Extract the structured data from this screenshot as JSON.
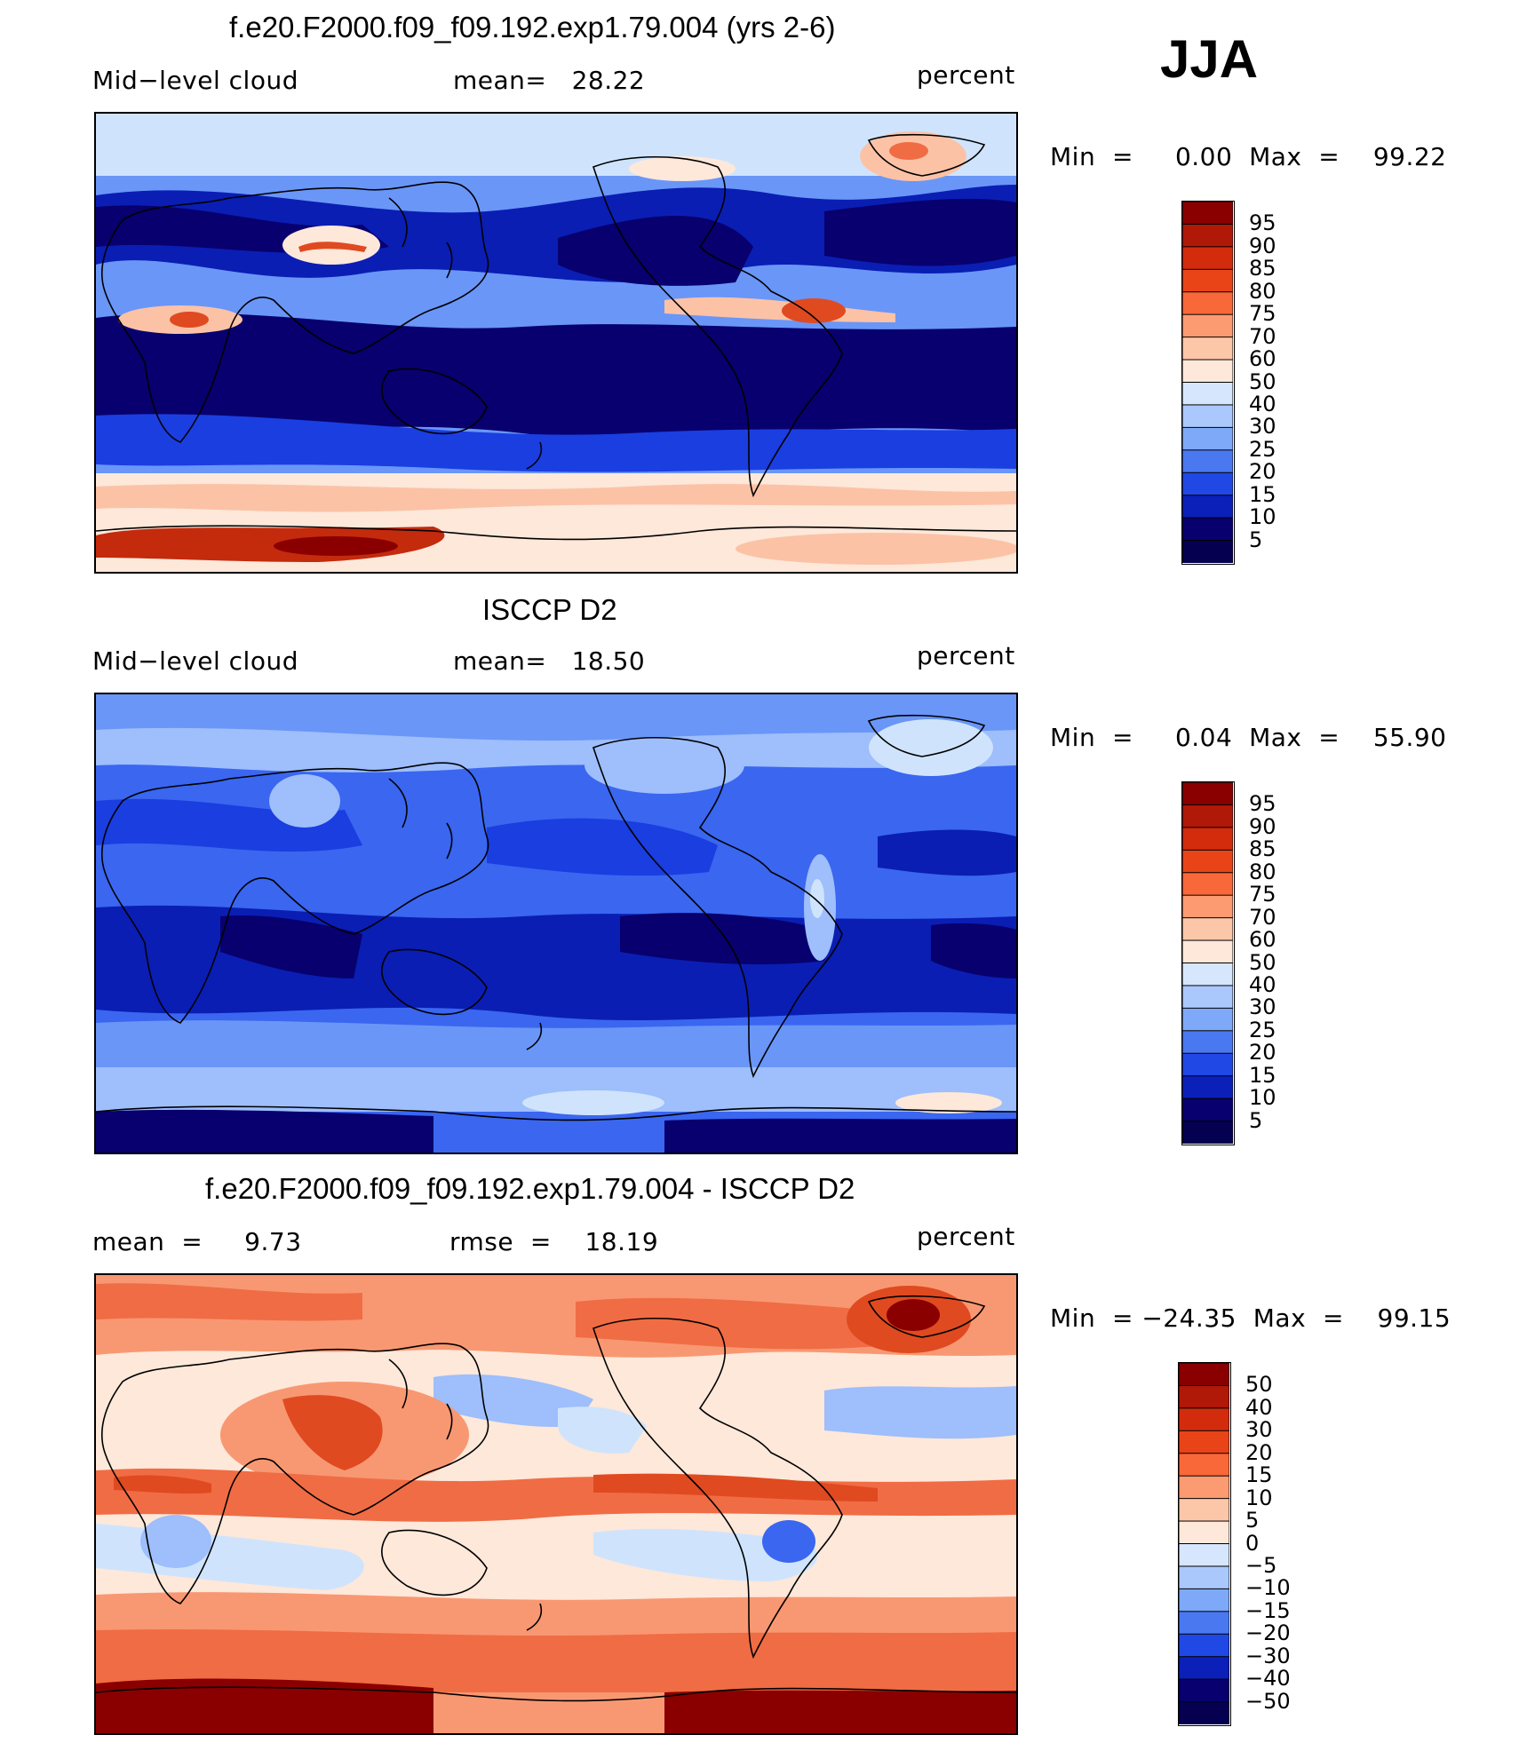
{
  "season": "JJA",
  "colors": {
    "levels11": [
      "#08006e",
      "#0a1eb4",
      "#1a3ee0",
      "#3a66f0",
      "#6a96f8",
      "#9ebefc",
      "#cfe4fc",
      "#fde8da",
      "#fcc2a6",
      "#f89872",
      "#f06c44",
      "#e04a20",
      "#c42a0c",
      "#8a0000"
    ],
    "land_outline": "#000000"
  },
  "panels": [
    {
      "title": "f.e20.F2000.f09_f09.192.exp1.79.004 (yrs 2-6)",
      "left_label": "Mid−level cloud",
      "center_label": "mean=   28.22",
      "units": "percent",
      "min_max": "Min  =     0.00  Max  =    99.22",
      "chart_data": {
        "type": "heatmap",
        "title": "f.e20.F2000.f09_f09.192.exp1.79.004 (yrs 2-6)",
        "variable": "Mid-level cloud",
        "units": "percent",
        "mean": 28.22,
        "min": 0.0,
        "max": 99.22,
        "colorbar_levels": [
          95,
          90,
          85,
          80,
          75,
          70,
          60,
          50,
          40,
          30,
          25,
          20,
          15,
          10,
          5
        ]
      }
    },
    {
      "title": "ISCCP D2",
      "left_label": "Mid−level cloud",
      "center_label": "mean=   18.50",
      "units": "percent",
      "min_max": "Min  =     0.04  Max  =    55.90",
      "chart_data": {
        "type": "heatmap",
        "title": "ISCCP D2",
        "variable": "Mid-level cloud",
        "units": "percent",
        "mean": 18.5,
        "min": 0.04,
        "max": 55.9,
        "colorbar_levels": [
          95,
          90,
          85,
          80,
          75,
          70,
          60,
          50,
          40,
          30,
          25,
          20,
          15,
          10,
          5
        ]
      }
    },
    {
      "title": "f.e20.F2000.f09_f09.192.exp1.79.004 - ISCCP D2",
      "left_label": "mean  =     9.73",
      "center_label": "rmse  =    18.19",
      "units": "percent",
      "min_max": "Min  = −24.35  Max  =    99.15",
      "chart_data": {
        "type": "heatmap",
        "title": "f.e20.F2000.f09_f09.192.exp1.79.004 - ISCCP D2",
        "units": "percent",
        "mean": 9.73,
        "rmse": 18.19,
        "min": -24.35,
        "max": 99.15,
        "colorbar_levels": [
          "50",
          "40",
          "30",
          "20",
          "15",
          "10",
          "5",
          "0",
          "−5",
          "−10",
          "−15",
          "−20",
          "−30",
          "−40",
          "−50"
        ]
      }
    }
  ]
}
